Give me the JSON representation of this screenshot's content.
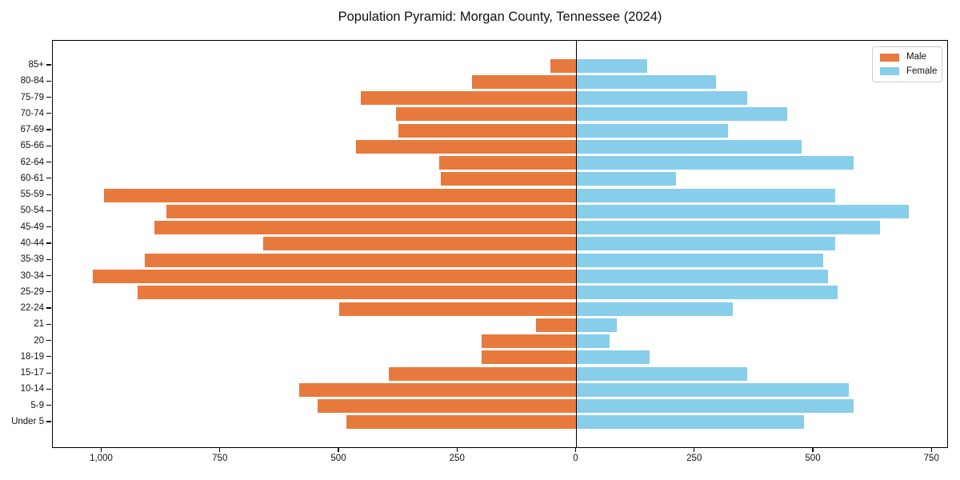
{
  "figure": {
    "background": "#ffffff"
  },
  "chart_data": {
    "type": "bar",
    "variant": "population-pyramid-horizontal",
    "title": "Population Pyramid: Morgan County, Tennessee (2024)",
    "categories": [
      "85+",
      "80-84",
      "75-79",
      "70-74",
      "67-69",
      "65-66",
      "62-64",
      "60-61",
      "55-59",
      "50-54",
      "45-49",
      "40-44",
      "35-39",
      "30-34",
      "25-29",
      "22-24",
      "21",
      "20",
      "18-19",
      "15-17",
      "10-14",
      "5-9",
      "Under 5"
    ],
    "series": [
      {
        "name": "Male",
        "side": "left",
        "color": "#E8793D",
        "values": [
          55,
          220,
          455,
          380,
          375,
          465,
          290,
          285,
          995,
          865,
          890,
          660,
          910,
          1020,
          925,
          500,
          85,
          200,
          200,
          395,
          585,
          545,
          485
        ]
      },
      {
        "name": "Female",
        "side": "right",
        "color": "#87CEEB",
        "values": [
          150,
          295,
          360,
          445,
          320,
          475,
          585,
          210,
          545,
          700,
          640,
          545,
          520,
          530,
          550,
          330,
          85,
          70,
          155,
          360,
          575,
          585,
          480
        ]
      }
    ],
    "x_axis": {
      "tick_values": [
        -1000,
        -750,
        -500,
        -250,
        0,
        250,
        500,
        750
      ],
      "tick_labels": [
        "1,000",
        "750",
        "500",
        "250",
        "0",
        "250",
        "500",
        "750"
      ],
      "xlim": [
        -1105,
        786
      ]
    },
    "grid": false,
    "legend": {
      "position": "upper-right",
      "entries": [
        {
          "label": "Male",
          "color": "#E8793D"
        },
        {
          "label": "Female",
          "color": "#87CEEB"
        }
      ]
    },
    "axis_color": "#000000",
    "text_color": "#111111"
  }
}
